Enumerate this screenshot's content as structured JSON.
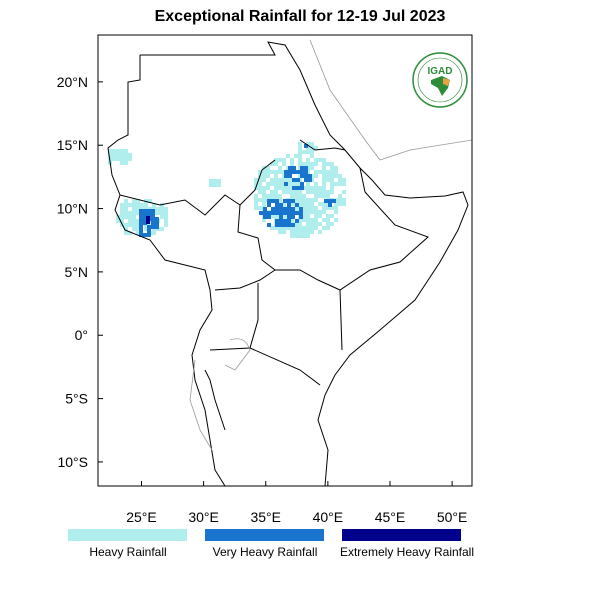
{
  "title": "Exceptional Rainfall for 12-19 Jul 2023",
  "logo": {
    "text": "IGAD",
    "icon": "igad-logo"
  },
  "axes": {
    "x_ticks": [
      {
        "v": 25,
        "label": "25°E"
      },
      {
        "v": 30,
        "label": "30°E"
      },
      {
        "v": 35,
        "label": "35°E"
      },
      {
        "v": 40,
        "label": "40°E"
      },
      {
        "v": 45,
        "label": "45°E"
      },
      {
        "v": 50,
        "label": "50°E"
      }
    ],
    "y_ticks": [
      {
        "v": 20,
        "label": "20°N"
      },
      {
        "v": 15,
        "label": "15°N"
      },
      {
        "v": 10,
        "label": "10°N"
      },
      {
        "v": 5,
        "label": "5°N"
      },
      {
        "v": 0,
        "label": "0°"
      },
      {
        "v": -5,
        "label": "5°S"
      },
      {
        "v": -10,
        "label": "10°S"
      }
    ],
    "lon_range": [
      21.5,
      51.6
    ],
    "lat_range": [
      -11.9,
      23.7
    ]
  },
  "legend": [
    {
      "label": "Heavy Rainfall",
      "color": "#b0eeee"
    },
    {
      "label": "Very Heavy Rainfall",
      "color": "#1874cd"
    },
    {
      "label": "Extremely Heavy Rainfall",
      "color": "#00008b"
    }
  ]
}
